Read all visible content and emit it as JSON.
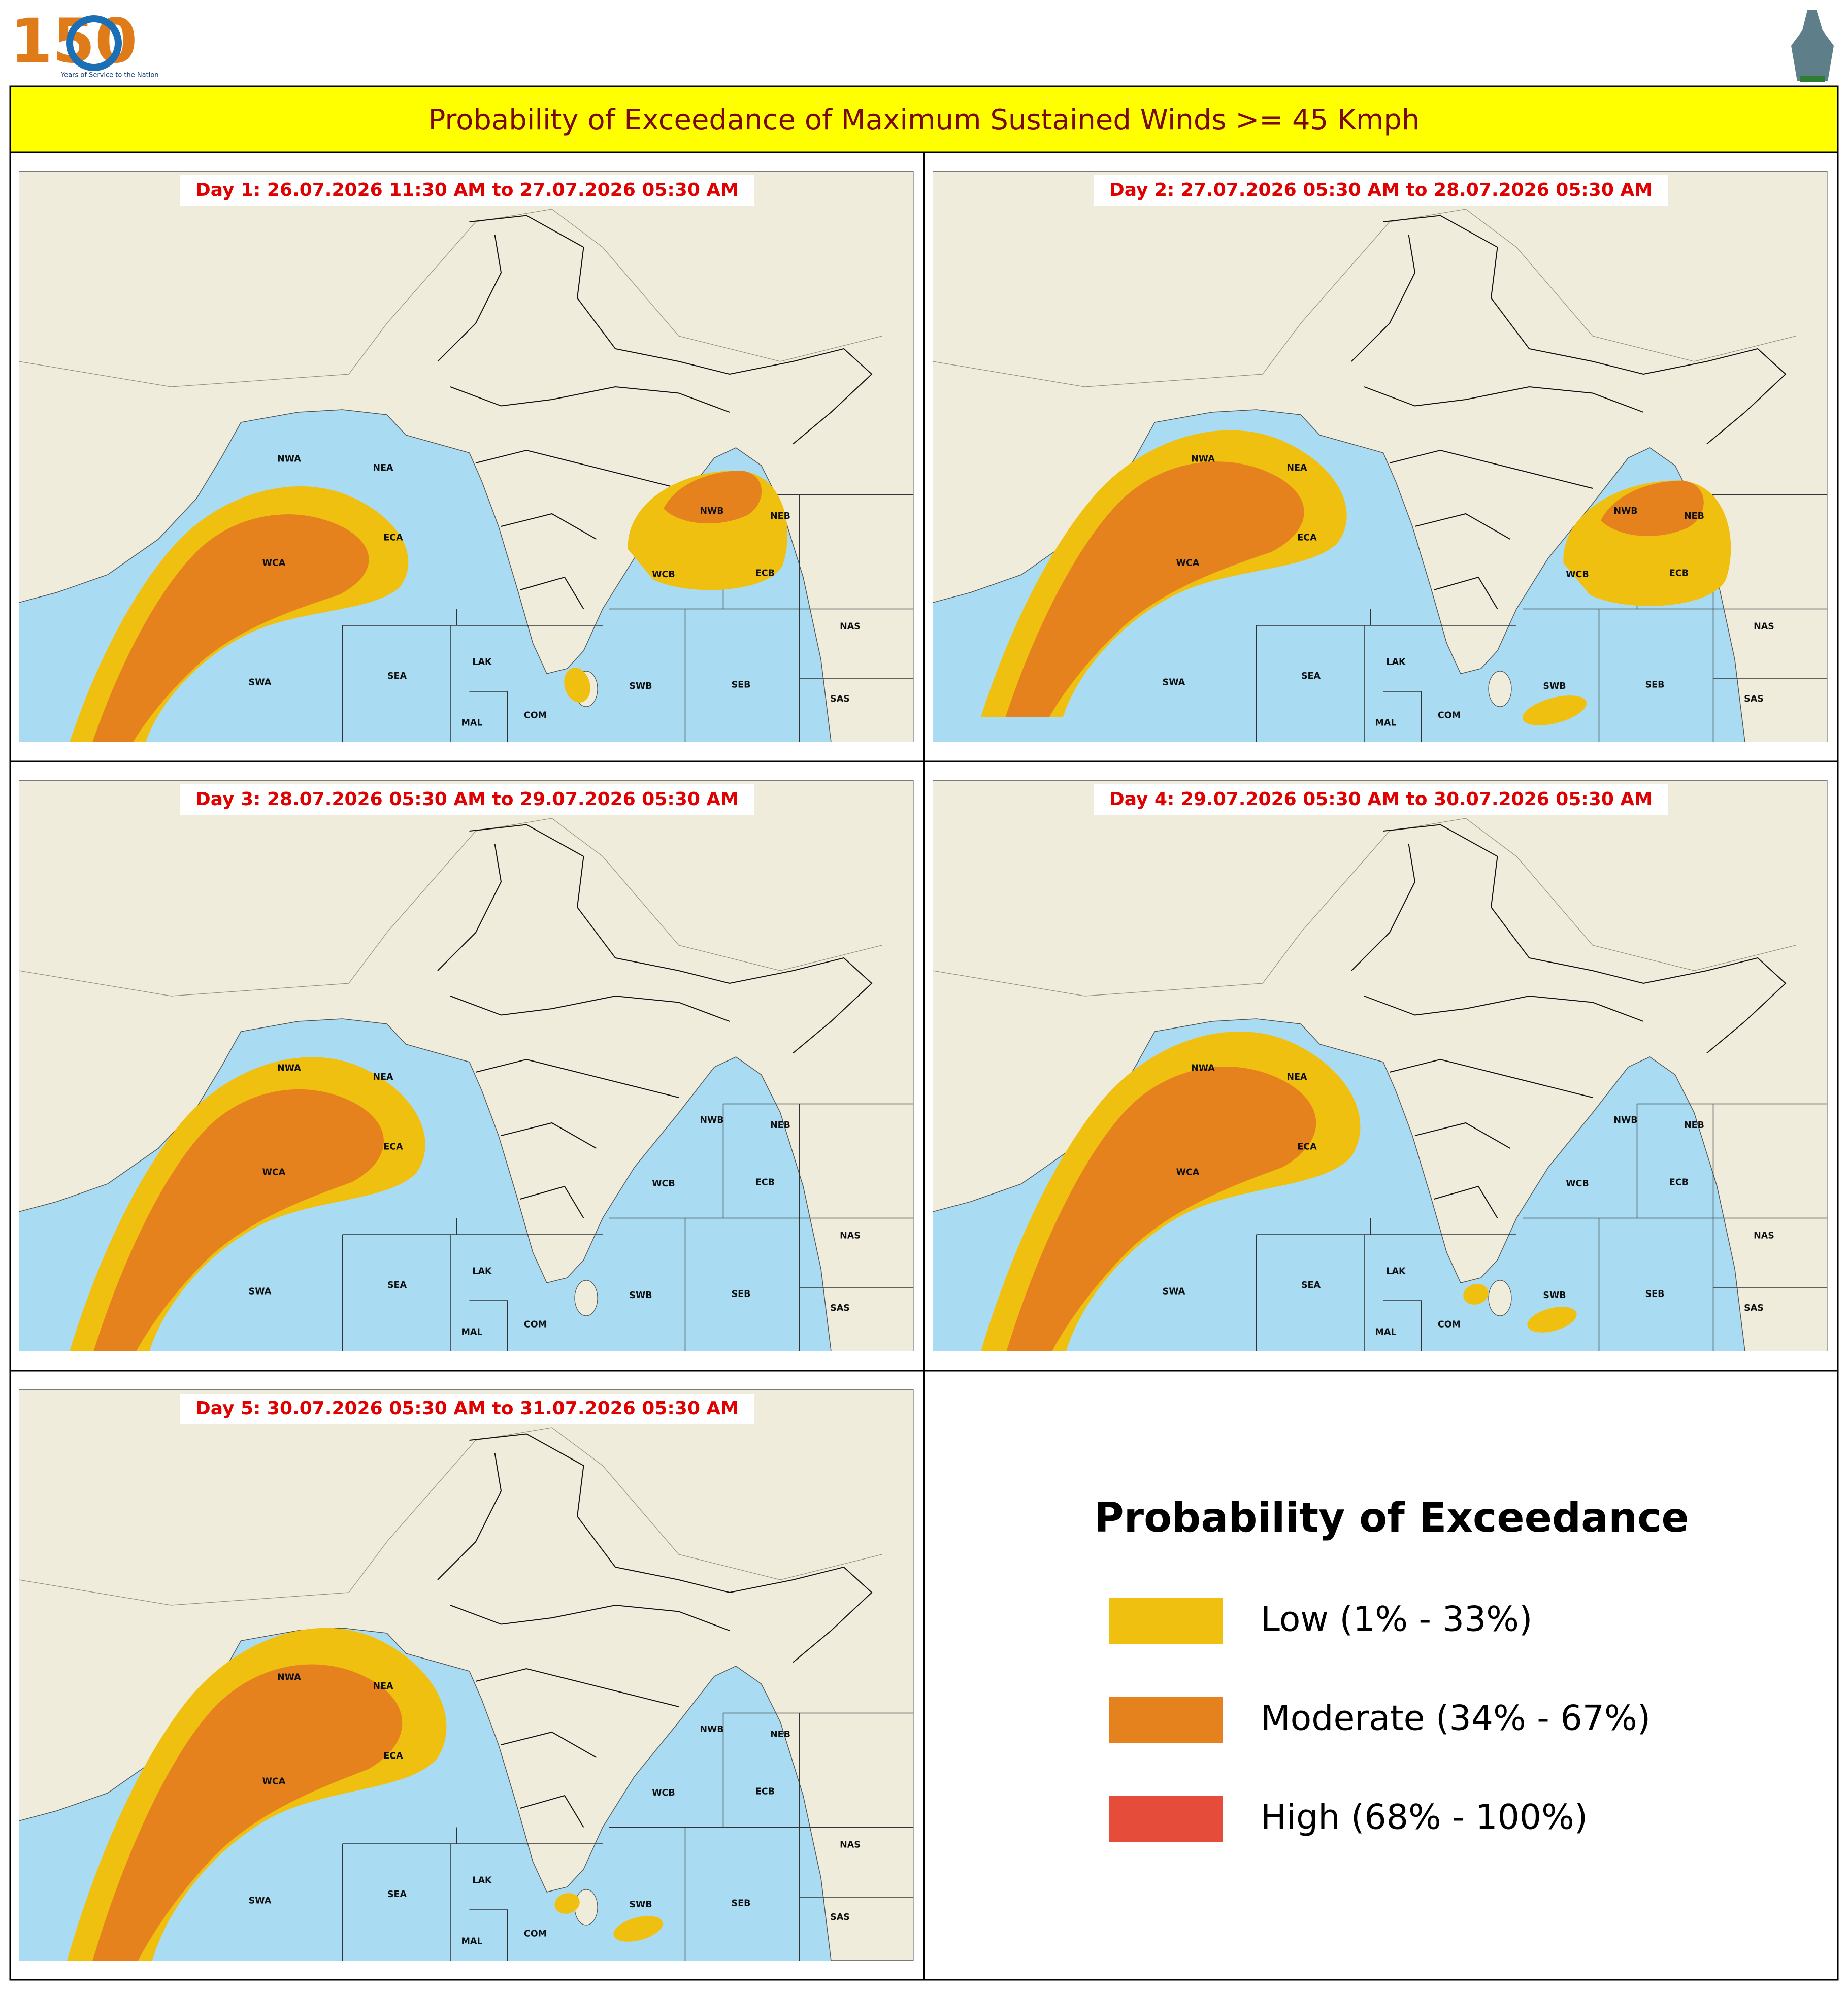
{
  "header": {
    "logo_text": "150",
    "logo_caption": "Years of Service to the Nation",
    "title": "Probability of Exceedance of Maximum Sustained Winds >= 45 Kmph"
  },
  "panels": [
    {
      "title": "Day 1: 26.07.2026 11:30 AM to 27.07.2026 05:30 AM"
    },
    {
      "title": "Day 2: 27.07.2026 05:30 AM to 28.07.2026 05:30 AM"
    },
    {
      "title": "Day 3: 28.07.2026 05:30 AM to 29.07.2026 05:30 AM"
    },
    {
      "title": "Day 4: 29.07.2026 05:30 AM to 30.07.2026 05:30 AM"
    },
    {
      "title": "Day 5: 30.07.2026 05:30 AM to 31.07.2026 05:30 AM"
    }
  ],
  "region_labels": [
    "NWA",
    "NEA",
    "ECA",
    "WCA",
    "SWA",
    "SEA",
    "LAK",
    "MAL",
    "COM",
    "NWB",
    "NEB",
    "WCB",
    "ECB",
    "SWB",
    "SEB",
    "NAS",
    "SAS"
  ],
  "legend": {
    "title": "Probability of Exceedance",
    "items": [
      {
        "label": "Low (1% - 33%)",
        "color": "#f0c010"
      },
      {
        "label": "Moderate (34% - 67%)",
        "color": "#e5821e"
      },
      {
        "label": "High (68% - 100%)",
        "color": "#e64c3a"
      }
    ]
  }
}
